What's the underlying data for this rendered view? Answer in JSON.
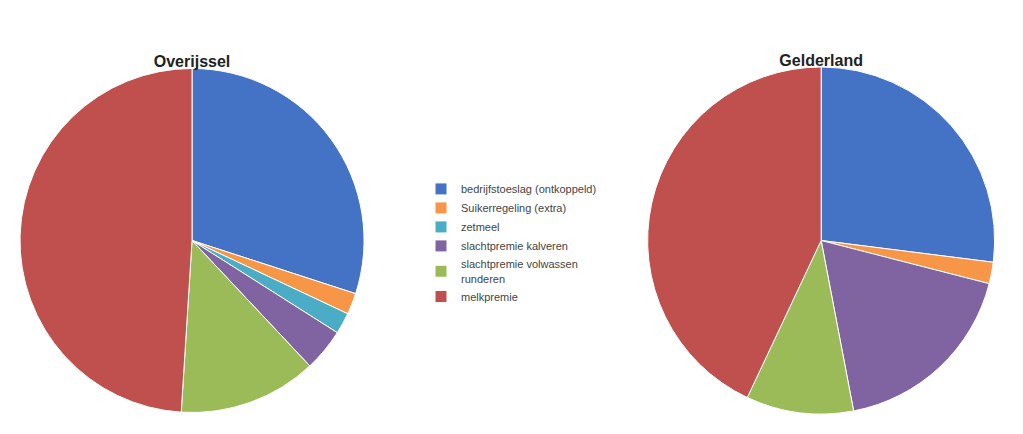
{
  "chart_data": [
    {
      "type": "pie",
      "title": "Overijssel",
      "categories": [
        "bedrijfstoeslag (ontkoppeld)",
        "Suikerregeling (extra)",
        "zetmeel",
        "slachtpremie kalveren",
        "slachtpremie volwassen\nrunderen",
        "melkpremie"
      ],
      "values": [
        30,
        2,
        2,
        4,
        13,
        49
      ],
      "colors": [
        "#4472C4",
        "#F79646",
        "#4BACC6",
        "#8064A2",
        "#9BBB59",
        "#C0504D"
      ],
      "legend": "center"
    },
    {
      "type": "pie",
      "title": "Gelderland",
      "categories": [
        "bedrijfstoeslag (ontkoppeld)",
        "Suikerregeling (extra)",
        "slachtpremie kalveren",
        "slachtpremie volwassen\nrunderen",
        "melkpremie"
      ],
      "values": [
        27,
        2,
        18,
        10,
        43
      ],
      "colors": [
        "#4472C4",
        "#F79646",
        "#8064A2",
        "#9BBB59",
        "#C0504D"
      ],
      "legend": "center"
    }
  ]
}
